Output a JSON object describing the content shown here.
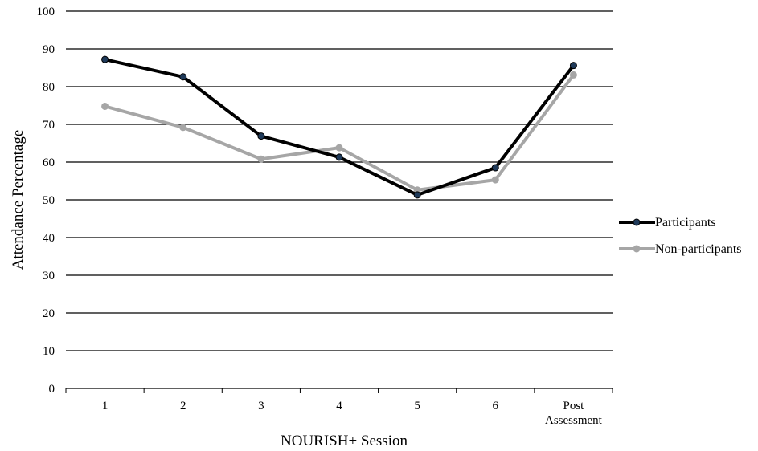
{
  "chart_data": {
    "type": "line",
    "title": "",
    "xlabel": "NOURISH+ Session",
    "ylabel": "Attendance Percentage",
    "categories": [
      "1",
      "2",
      "3",
      "4",
      "5",
      "6",
      "Post\nAssessment"
    ],
    "ylim": [
      0,
      100
    ],
    "yticks": [
      0,
      10,
      20,
      30,
      40,
      50,
      60,
      70,
      80,
      90,
      100
    ],
    "grid": "horizontal",
    "legend_position": "right",
    "series": [
      {
        "name": "Participants",
        "color": "#000000",
        "marker_color": "#1f3a5a",
        "values": [
          87.2,
          82.6,
          66.9,
          61.3,
          51.3,
          58.5,
          85.6
        ]
      },
      {
        "name": "Non-participants",
        "color": "#a6a6a6",
        "marker_color": "#a6a6a6",
        "values": [
          74.8,
          69.2,
          60.8,
          63.8,
          52.6,
          55.3,
          83.1
        ]
      }
    ]
  }
}
